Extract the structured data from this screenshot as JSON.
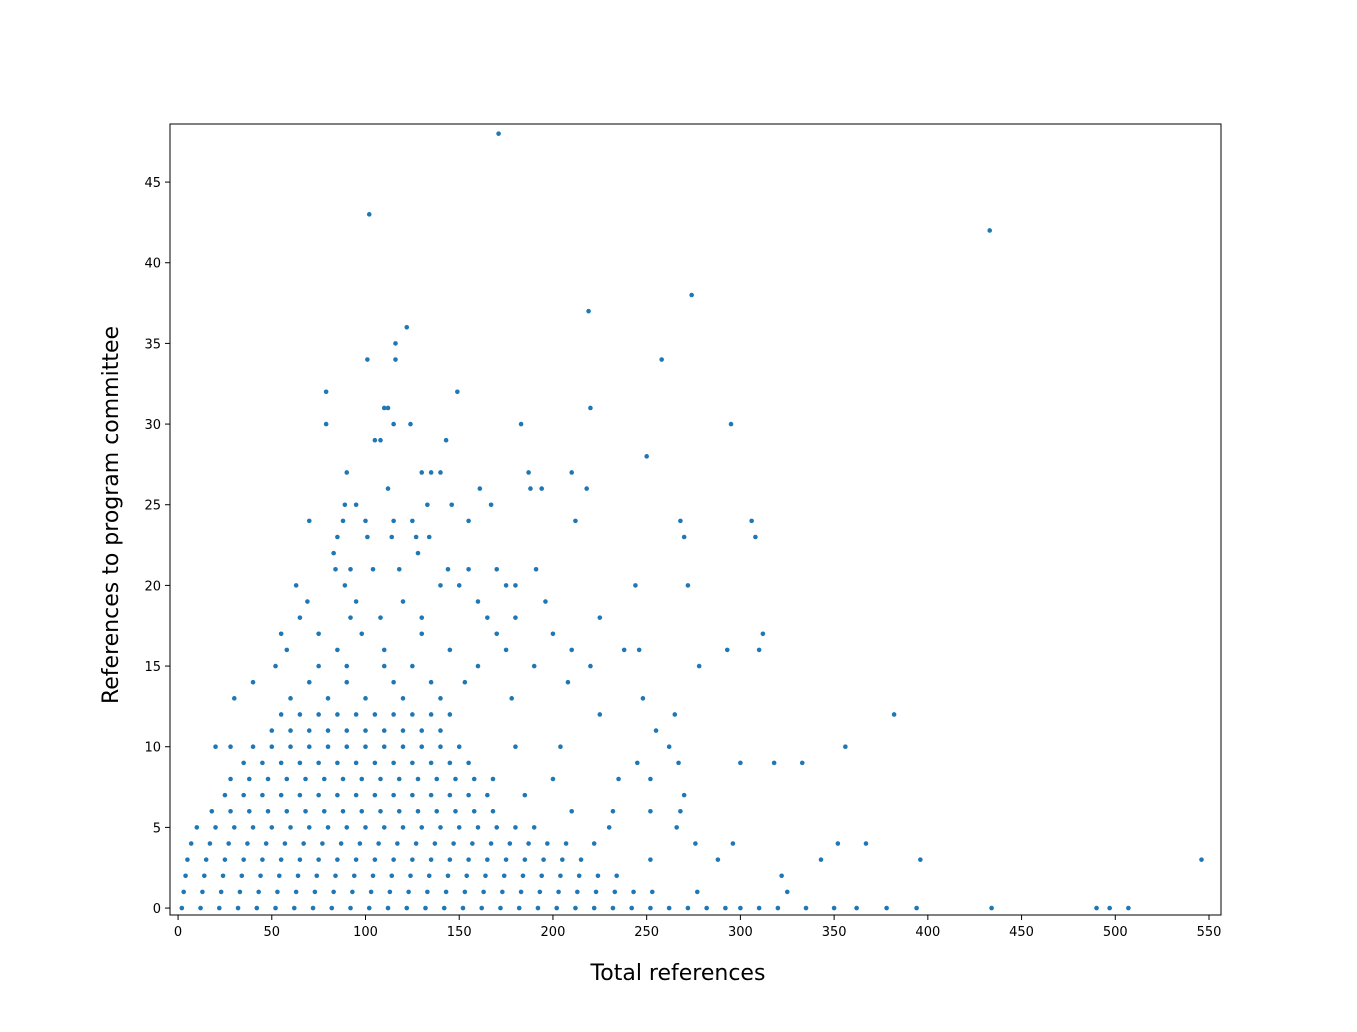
{
  "chart_data": {
    "type": "scatter",
    "x_label": "Total references",
    "y_label": "References to program committee",
    "color": "#1f77b4",
    "xlim": [
      -4.3,
      556.4
    ],
    "ylim": [
      -0.43,
      48.6
    ],
    "xticks": [
      0,
      50,
      100,
      150,
      200,
      250,
      300,
      350,
      400,
      450,
      500,
      550
    ],
    "yticks": [
      0,
      5,
      10,
      15,
      20,
      25,
      30,
      35,
      40,
      45
    ],
    "x": [
      2,
      12,
      22,
      32,
      42,
      52,
      62,
      72,
      82,
      92,
      102,
      112,
      122,
      132,
      142,
      152,
      162,
      172,
      182,
      192,
      202,
      212,
      222,
      232,
      242,
      252,
      262,
      272,
      282,
      292,
      300,
      310,
      320,
      335,
      350,
      362,
      378,
      394,
      434,
      490,
      497,
      507,
      3,
      13,
      23,
      33,
      43,
      53,
      63,
      73,
      83,
      93,
      103,
      113,
      123,
      133,
      143,
      153,
      163,
      173,
      183,
      193,
      203,
      213,
      223,
      233,
      243,
      253,
      277,
      325,
      4,
      14,
      24,
      34,
      44,
      54,
      64,
      74,
      84,
      94,
      104,
      114,
      124,
      134,
      144,
      154,
      164,
      174,
      184,
      194,
      204,
      214,
      224,
      234,
      322,
      5,
      15,
      25,
      35,
      45,
      55,
      65,
      75,
      85,
      95,
      105,
      115,
      125,
      135,
      145,
      155,
      165,
      175,
      185,
      195,
      205,
      215,
      252,
      288,
      343,
      396,
      546,
      7,
      17,
      27,
      37,
      47,
      57,
      67,
      77,
      87,
      97,
      107,
      117,
      127,
      137,
      147,
      157,
      167,
      177,
      187,
      197,
      207,
      222,
      276,
      296,
      352,
      367,
      10,
      20,
      30,
      40,
      50,
      60,
      70,
      80,
      90,
      100,
      110,
      120,
      130,
      140,
      150,
      160,
      170,
      180,
      190,
      230,
      266,
      18,
      28,
      38,
      48,
      58,
      68,
      78,
      88,
      98,
      108,
      118,
      128,
      138,
      148,
      158,
      168,
      210,
      232,
      252,
      268,
      25,
      35,
      45,
      55,
      65,
      75,
      85,
      95,
      105,
      115,
      125,
      135,
      145,
      155,
      165,
      185,
      270,
      28,
      38,
      48,
      58,
      68,
      78,
      88,
      98,
      108,
      118,
      128,
      138,
      148,
      158,
      168,
      200,
      235,
      252,
      35,
      45,
      55,
      65,
      75,
      85,
      95,
      105,
      115,
      125,
      135,
      145,
      155,
      245,
      267,
      300,
      318,
      333,
      20,
      28,
      40,
      50,
      60,
      70,
      80,
      90,
      100,
      110,
      120,
      130,
      140,
      150,
      180,
      204,
      262,
      356,
      50,
      60,
      70,
      80,
      90,
      100,
      110,
      120,
      130,
      140,
      255,
      55,
      65,
      75,
      85,
      95,
      105,
      115,
      125,
      135,
      145,
      225,
      265,
      382,
      30,
      60,
      80,
      100,
      120,
      140,
      178,
      248,
      40,
      70,
      90,
      115,
      135,
      153,
      208,
      52,
      75,
      90,
      110,
      125,
      160,
      190,
      220,
      278,
      58,
      85,
      110,
      145,
      175,
      210,
      238,
      246,
      293,
      310,
      55,
      75,
      98,
      130,
      170,
      200,
      312,
      65,
      92,
      108,
      130,
      165,
      180,
      225,
      69,
      95,
      120,
      160,
      196,
      63,
      89,
      140,
      150,
      175,
      180,
      244,
      272,
      84,
      92,
      104,
      118,
      144,
      155,
      170,
      191,
      83,
      128,
      85,
      101,
      114,
      127,
      134,
      270,
      308,
      70,
      88,
      100,
      115,
      125,
      155,
      212,
      268,
      306,
      89,
      95,
      133,
      146,
      167,
      112,
      161,
      188,
      194,
      218,
      90,
      130,
      135,
      140,
      187,
      210,
      250,
      105,
      108,
      143,
      79,
      115,
      124,
      183,
      295,
      110,
      112,
      220,
      79,
      149,
      101,
      116,
      258,
      116,
      122,
      219,
      274,
      433,
      102,
      171
    ],
    "values": [
      0,
      0,
      0,
      0,
      0,
      0,
      0,
      0,
      0,
      0,
      0,
      0,
      0,
      0,
      0,
      0,
      0,
      0,
      0,
      0,
      0,
      0,
      0,
      0,
      0,
      0,
      0,
      0,
      0,
      0,
      0,
      0,
      0,
      0,
      0,
      0,
      0,
      0,
      0,
      0,
      0,
      0,
      1,
      1,
      1,
      1,
      1,
      1,
      1,
      1,
      1,
      1,
      1,
      1,
      1,
      1,
      1,
      1,
      1,
      1,
      1,
      1,
      1,
      1,
      1,
      1,
      1,
      1,
      1,
      1,
      2,
      2,
      2,
      2,
      2,
      2,
      2,
      2,
      2,
      2,
      2,
      2,
      2,
      2,
      2,
      2,
      2,
      2,
      2,
      2,
      2,
      2,
      2,
      2,
      2,
      3,
      3,
      3,
      3,
      3,
      3,
      3,
      3,
      3,
      3,
      3,
      3,
      3,
      3,
      3,
      3,
      3,
      3,
      3,
      3,
      3,
      3,
      3,
      3,
      3,
      3,
      3,
      4,
      4,
      4,
      4,
      4,
      4,
      4,
      4,
      4,
      4,
      4,
      4,
      4,
      4,
      4,
      4,
      4,
      4,
      4,
      4,
      4,
      4,
      4,
      4,
      4,
      4,
      5,
      5,
      5,
      5,
      5,
      5,
      5,
      5,
      5,
      5,
      5,
      5,
      5,
      5,
      5,
      5,
      5,
      5,
      5,
      5,
      5,
      6,
      6,
      6,
      6,
      6,
      6,
      6,
      6,
      6,
      6,
      6,
      6,
      6,
      6,
      6,
      6,
      6,
      6,
      6,
      6,
      7,
      7,
      7,
      7,
      7,
      7,
      7,
      7,
      7,
      7,
      7,
      7,
      7,
      7,
      7,
      7,
      7,
      8,
      8,
      8,
      8,
      8,
      8,
      8,
      8,
      8,
      8,
      8,
      8,
      8,
      8,
      8,
      8,
      8,
      8,
      9,
      9,
      9,
      9,
      9,
      9,
      9,
      9,
      9,
      9,
      9,
      9,
      9,
      9,
      9,
      9,
      9,
      9,
      10,
      10,
      10,
      10,
      10,
      10,
      10,
      10,
      10,
      10,
      10,
      10,
      10,
      10,
      10,
      10,
      10,
      10,
      11,
      11,
      11,
      11,
      11,
      11,
      11,
      11,
      11,
      11,
      11,
      12,
      12,
      12,
      12,
      12,
      12,
      12,
      12,
      12,
      12,
      12,
      12,
      12,
      13,
      13,
      13,
      13,
      13,
      13,
      13,
      13,
      14,
      14,
      14,
      14,
      14,
      14,
      14,
      15,
      15,
      15,
      15,
      15,
      15,
      15,
      15,
      15,
      16,
      16,
      16,
      16,
      16,
      16,
      16,
      16,
      16,
      16,
      17,
      17,
      17,
      17,
      17,
      17,
      17,
      18,
      18,
      18,
      18,
      18,
      18,
      18,
      19,
      19,
      19,
      19,
      19,
      20,
      20,
      20,
      20,
      20,
      20,
      20,
      20,
      21,
      21,
      21,
      21,
      21,
      21,
      21,
      21,
      22,
      22,
      23,
      23,
      23,
      23,
      23,
      23,
      23,
      24,
      24,
      24,
      24,
      24,
      24,
      24,
      24,
      24,
      25,
      25,
      25,
      25,
      25,
      26,
      26,
      26,
      26,
      26,
      27,
      27,
      27,
      27,
      27,
      27,
      28,
      29,
      29,
      29,
      30,
      30,
      30,
      30,
      30,
      31,
      31,
      31,
      32,
      32,
      34,
      34,
      34,
      35,
      36,
      37,
      38,
      42,
      43,
      48
    ]
  }
}
